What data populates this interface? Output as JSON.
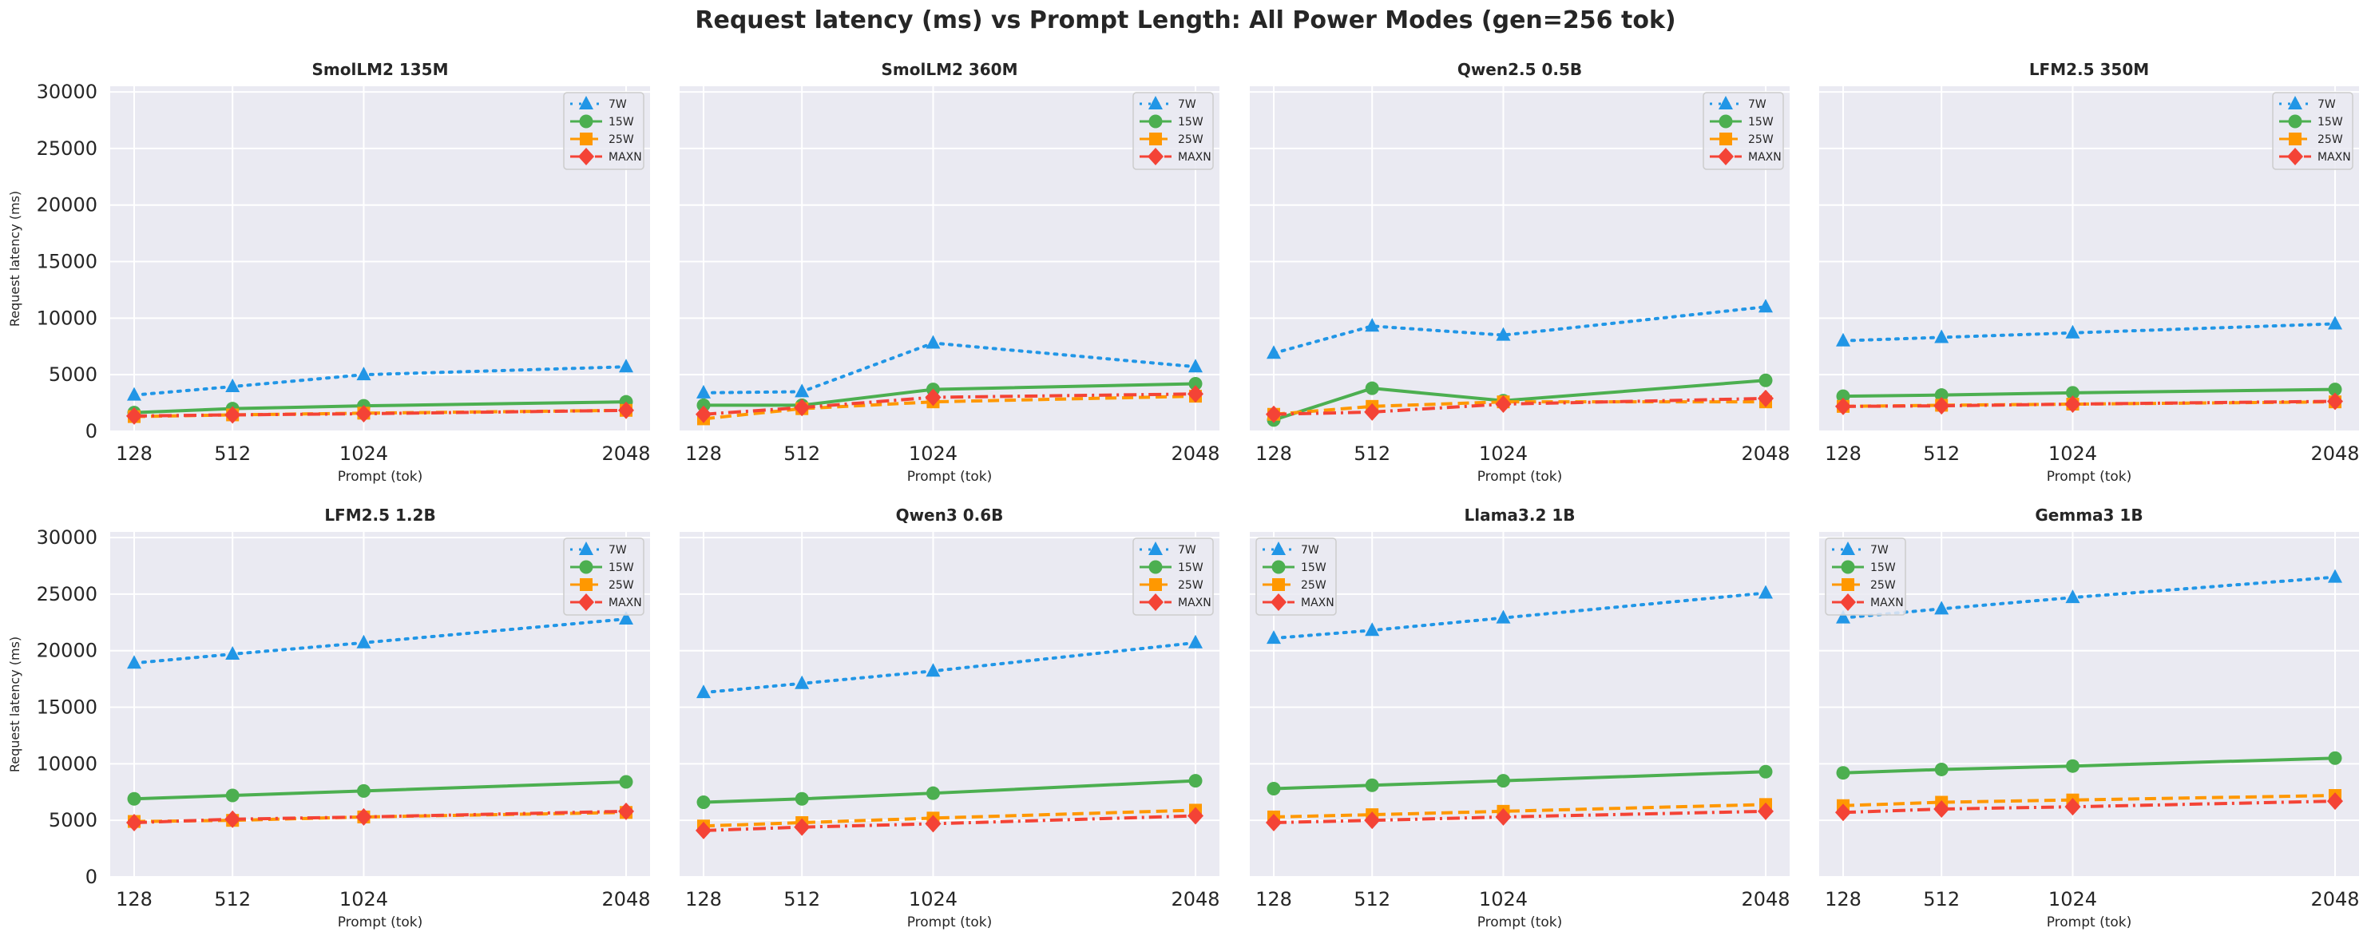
{
  "figure": {
    "title": "Request latency (ms) vs Prompt Length: All Power Modes (gen=256 tok)"
  },
  "colors": {
    "7W": "#2196e6",
    "15W": "#4caf50",
    "25W": "#ff9800",
    "MAXN": "#f44336",
    "panel_bg": "#eaeaf2",
    "grid": "#ffffff"
  },
  "series_styles": {
    "7W": {
      "marker": "triangle",
      "dash": "dotted"
    },
    "15W": {
      "marker": "circle",
      "dash": "solid"
    },
    "25W": {
      "marker": "square",
      "dash": "dashed"
    },
    "MAXN": {
      "marker": "diamond",
      "dash": "dashdot"
    }
  },
  "chart_data": [
    {
      "type": "line",
      "title": "SmolLM2 135M",
      "xlabel": "Prompt (tok)",
      "ylabel": "Request latency (ms)",
      "x": [
        128,
        512,
        1024,
        2048
      ],
      "x_ticks": [
        "128",
        "512",
        "1024",
        "2048"
      ],
      "ylim": [
        0,
        30500
      ],
      "y_ticks": [
        "0",
        "5000",
        "10000",
        "15000",
        "20000",
        "25000",
        "30000"
      ],
      "grid": true,
      "legend": "upper right",
      "series": [
        {
          "name": "7W",
          "values": [
            3200,
            3950,
            5000,
            5700
          ]
        },
        {
          "name": "15W",
          "values": [
            1650,
            2000,
            2250,
            2600
          ]
        },
        {
          "name": "25W",
          "values": [
            1300,
            1450,
            1600,
            1850
          ]
        },
        {
          "name": "MAXN",
          "values": [
            1350,
            1450,
            1550,
            1850
          ]
        }
      ]
    },
    {
      "type": "line",
      "title": "SmolLM2 360M",
      "xlabel": "Prompt (tok)",
      "ylabel": "",
      "x": [
        128,
        512,
        1024,
        2048
      ],
      "x_ticks": [
        "128",
        "512",
        "1024",
        "2048"
      ],
      "ylim": [
        0,
        30500
      ],
      "y_ticks": [],
      "grid": true,
      "legend": "upper right",
      "series": [
        {
          "name": "7W",
          "values": [
            3400,
            3500,
            7800,
            5700
          ]
        },
        {
          "name": "15W",
          "values": [
            2300,
            2300,
            3700,
            4200
          ]
        },
        {
          "name": "25W",
          "values": [
            1100,
            2000,
            2600,
            3100
          ]
        },
        {
          "name": "MAXN",
          "values": [
            1500,
            2100,
            3000,
            3300
          ]
        }
      ]
    },
    {
      "type": "line",
      "title": "Qwen2.5 0.5B",
      "xlabel": "Prompt (tok)",
      "ylabel": "",
      "x": [
        128,
        512,
        1024,
        2048
      ],
      "x_ticks": [
        "128",
        "512",
        "1024",
        "2048"
      ],
      "ylim": [
        0,
        30500
      ],
      "y_ticks": [],
      "grid": true,
      "legend": "upper right",
      "series": [
        {
          "name": "7W",
          "values": [
            6900,
            9300,
            8500,
            11000
          ]
        },
        {
          "name": "15W",
          "values": [
            1000,
            3800,
            2700,
            4500
          ]
        },
        {
          "name": "25W",
          "values": [
            1500,
            2200,
            2600,
            2600
          ]
        },
        {
          "name": "MAXN",
          "values": [
            1500,
            1700,
            2400,
            2900
          ]
        }
      ]
    },
    {
      "type": "line",
      "title": "LFM2.5 350M",
      "xlabel": "Prompt (tok)",
      "ylabel": "",
      "x": [
        128,
        512,
        1024,
        2048
      ],
      "x_ticks": [
        "128",
        "512",
        "1024",
        "2048"
      ],
      "ylim": [
        0,
        30500
      ],
      "y_ticks": [],
      "grid": true,
      "legend": "upper right",
      "series": [
        {
          "name": "7W",
          "values": [
            8000,
            8300,
            8700,
            9500
          ]
        },
        {
          "name": "15W",
          "values": [
            3100,
            3200,
            3400,
            3700
          ]
        },
        {
          "name": "25W",
          "values": [
            2200,
            2300,
            2400,
            2600
          ]
        },
        {
          "name": "MAXN",
          "values": [
            2200,
            2250,
            2400,
            2650
          ]
        }
      ]
    },
    {
      "type": "line",
      "title": "LFM2.5 1.2B",
      "xlabel": "Prompt (tok)",
      "ylabel": "Request latency (ms)",
      "x": [
        128,
        512,
        1024,
        2048
      ],
      "x_ticks": [
        "128",
        "512",
        "1024",
        "2048"
      ],
      "ylim": [
        0,
        30500
      ],
      "y_ticks": [
        "0",
        "5000",
        "10000",
        "15000",
        "20000",
        "25000",
        "30000"
      ],
      "grid": true,
      "legend": "upper right",
      "series": [
        {
          "name": "7W",
          "values": [
            18900,
            19700,
            20700,
            22800
          ]
        },
        {
          "name": "15W",
          "values": [
            6900,
            7200,
            7600,
            8400
          ]
        },
        {
          "name": "25W",
          "values": [
            4900,
            5000,
            5300,
            5700
          ]
        },
        {
          "name": "MAXN",
          "values": [
            4800,
            5100,
            5300,
            5800
          ]
        }
      ]
    },
    {
      "type": "line",
      "title": "Qwen3 0.6B",
      "xlabel": "Prompt (tok)",
      "ylabel": "",
      "x": [
        128,
        512,
        1024,
        2048
      ],
      "x_ticks": [
        "128",
        "512",
        "1024",
        "2048"
      ],
      "ylim": [
        0,
        30500
      ],
      "y_ticks": [],
      "grid": true,
      "legend": "upper right",
      "series": [
        {
          "name": "7W",
          "values": [
            16300,
            17100,
            18200,
            20700
          ]
        },
        {
          "name": "15W",
          "values": [
            6600,
            6900,
            7400,
            8500
          ]
        },
        {
          "name": "25W",
          "values": [
            4500,
            4800,
            5200,
            5900
          ]
        },
        {
          "name": "MAXN",
          "values": [
            4100,
            4400,
            4700,
            5400
          ]
        }
      ]
    },
    {
      "type": "line",
      "title": "Llama3.2 1B",
      "xlabel": "Prompt (tok)",
      "ylabel": "",
      "x": [
        128,
        512,
        1024,
        2048
      ],
      "x_ticks": [
        "128",
        "512",
        "1024",
        "2048"
      ],
      "ylim": [
        0,
        30500
      ],
      "y_ticks": [],
      "grid": true,
      "legend": "upper left",
      "series": [
        {
          "name": "7W",
          "values": [
            21100,
            21800,
            22900,
            25100
          ]
        },
        {
          "name": "15W",
          "values": [
            7800,
            8100,
            8500,
            9300
          ]
        },
        {
          "name": "25W",
          "values": [
            5300,
            5500,
            5800,
            6400
          ]
        },
        {
          "name": "MAXN",
          "values": [
            4800,
            5000,
            5300,
            5800
          ]
        }
      ]
    },
    {
      "type": "line",
      "title": "Gemma3 1B",
      "xlabel": "Prompt (tok)",
      "ylabel": "",
      "x": [
        128,
        512,
        1024,
        2048
      ],
      "x_ticks": [
        "128",
        "512",
        "1024",
        "2048"
      ],
      "ylim": [
        0,
        30500
      ],
      "y_ticks": [],
      "grid": true,
      "legend": "upper left",
      "series": [
        {
          "name": "7W",
          "values": [
            22900,
            23700,
            24700,
            26500
          ]
        },
        {
          "name": "15W",
          "values": [
            9200,
            9500,
            9800,
            10500
          ]
        },
        {
          "name": "25W",
          "values": [
            6300,
            6600,
            6800,
            7200
          ]
        },
        {
          "name": "MAXN",
          "values": [
            5700,
            6000,
            6200,
            6700
          ]
        }
      ]
    }
  ]
}
